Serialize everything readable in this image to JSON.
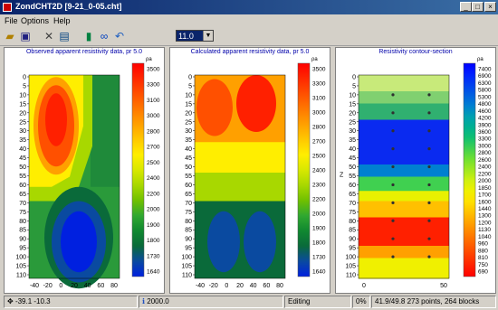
{
  "window": {
    "title": "ZondCHT2D [9-21_0-05.cht]"
  },
  "menu": [
    "File",
    "Options",
    "Help"
  ],
  "toolbar": {
    "icons": [
      "open-folder-icon",
      "save-disk-icon",
      "tools-icon",
      "table-icon",
      "battery-icon",
      "binoculars-icon",
      "undo-icon"
    ],
    "combo_value": "11.0"
  },
  "panels": [
    {
      "title": "Observed apparent resistivity data,  pr 5.0",
      "unit": "ρa",
      "x_ticks": [
        "-40",
        "-20",
        "0",
        "20",
        "40",
        "60",
        "80"
      ],
      "y_ticks": [
        "0",
        "5",
        "10",
        "15",
        "20",
        "25",
        "30",
        "35",
        "40",
        "45",
        "50",
        "55",
        "60",
        "65",
        "70",
        "75",
        "80",
        "85",
        "90",
        "95",
        "100",
        "105",
        "110"
      ],
      "scale_labels": [
        "3500",
        "3300",
        "3100",
        "3000",
        "2800",
        "2700",
        "2500",
        "2400",
        "2200",
        "2000",
        "1900",
        "1800",
        "1730",
        "1640"
      ],
      "scale_colors": [
        "#ff0000",
        "#ff2800",
        "#ff5000",
        "#ff7800",
        "#ffa000",
        "#ffc800",
        "#ffee00",
        "#d8e800",
        "#a8d800",
        "#70c000",
        "#30a830",
        "#108830",
        "#0a6a3a",
        "#0a4aa0",
        "#0020e0"
      ]
    },
    {
      "title": "Calculated apparent resistivity data,  pr 5.0",
      "unit": "ρa",
      "x_ticks": [
        "-40",
        "-20",
        "0",
        "20",
        "40",
        "60",
        "80"
      ],
      "y_ticks": [
        "0",
        "5",
        "10",
        "15",
        "20",
        "25",
        "30",
        "35",
        "40",
        "45",
        "50",
        "55",
        "60",
        "65",
        "70",
        "75",
        "80",
        "85",
        "90",
        "95",
        "100",
        "105",
        "110"
      ],
      "scale_labels": [
        "3500",
        "3300",
        "3100",
        "3000",
        "2800",
        "2700",
        "2500",
        "2400",
        "2300",
        "2200",
        "2000",
        "1900",
        "1800",
        "1730",
        "1640"
      ],
      "scale_colors": [
        "#ff0000",
        "#ff2800",
        "#ff5000",
        "#ff7800",
        "#ffa000",
        "#ffc800",
        "#ffee00",
        "#d8e800",
        "#a8d800",
        "#70c000",
        "#30a830",
        "#108830",
        "#0a6a3a",
        "#0a4aa0",
        "#0020e0"
      ]
    },
    {
      "title": "Resistivity contour-section",
      "unit": "ρa",
      "x_ticks": [
        "0",
        "50"
      ],
      "y_label": "Z",
      "y_ticks": [
        "0",
        "5",
        "10",
        "15",
        "20",
        "25",
        "30",
        "35",
        "40",
        "45",
        "50",
        "55",
        "60",
        "65",
        "70",
        "75",
        "80",
        "85",
        "90",
        "95",
        "100",
        "105",
        "110"
      ],
      "scale_labels": [
        "7400",
        "6900",
        "6300",
        "5800",
        "5300",
        "4800",
        "4600",
        "4200",
        "3900",
        "3600",
        "3300",
        "3000",
        "2800",
        "2600",
        "2400",
        "2200",
        "2000",
        "1850",
        "1700",
        "1600",
        "1440",
        "1300",
        "1200",
        "1130",
        "1040",
        "960",
        "880",
        "810",
        "750",
        "690"
      ],
      "scale_colors": [
        "#0000ff",
        "#0020ff",
        "#0040f0",
        "#0060e0",
        "#0080d0",
        "#00a0b0",
        "#00b090",
        "#10c070",
        "#40d050",
        "#70e030",
        "#a0e820",
        "#d0f010",
        "#f0f000",
        "#ffe000",
        "#ffc000",
        "#ffa000",
        "#ff8000",
        "#ff6000",
        "#ff4000",
        "#ff2000",
        "#ff0000"
      ]
    }
  ],
  "status": {
    "coords": "-39.1 -10.3",
    "value": "2000.0",
    "mode": "Editing",
    "percent": "0%",
    "stats": "41.9/49.8  273 points,  264 blocks"
  }
}
